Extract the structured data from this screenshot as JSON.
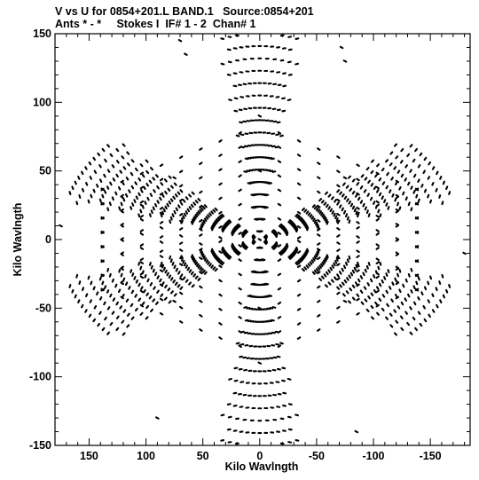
{
  "chart_data": {
    "type": "scatter",
    "title": "V vs U for 0854+201.L BAND.1   Source:0854+201",
    "subtitle": "Ants * - *     Stokes I  IF# 1 - 2  Chan# 1",
    "xlabel": "Kilo Wavlngth",
    "ylabel": "Kilo Wavlngth",
    "xlim": [
      180,
      -185
    ],
    "ylim": [
      -150,
      150
    ],
    "x_ticks": [
      "150",
      "100",
      "50",
      "0",
      "-50",
      "-100",
      "-150"
    ],
    "y_ticks": [
      "150",
      "100",
      "50",
      "0",
      "-50",
      "-100",
      "-150"
    ],
    "grid": false,
    "legend": "none",
    "point_color": "#000000",
    "description_pattern": "snowflake uv-coverage: three arm directions (vertical, +30deg, -30deg) with symmetric counterparts",
    "points_sample": [
      {
        "x": 70,
        "y": 145
      },
      {
        "x": 65,
        "y": 135
      },
      {
        "x": -72,
        "y": 140
      },
      {
        "x": -75,
        "y": 130
      },
      {
        "x": 0,
        "y": 90
      },
      {
        "x": 0,
        "y": 50
      },
      {
        "x": 0,
        "y": 0
      },
      {
        "x": 0,
        "y": -50
      },
      {
        "x": 0,
        "y": -90
      },
      {
        "x": 75,
        "y": 45
      },
      {
        "x": -75,
        "y": -45
      },
      {
        "x": -75,
        "y": 45
      },
      {
        "x": 75,
        "y": -45
      },
      {
        "x": 175,
        "y": 10
      },
      {
        "x": -180,
        "y": -10
      },
      {
        "x": 90,
        "y": -130
      },
      {
        "x": -85,
        "y": -140
      }
    ]
  }
}
